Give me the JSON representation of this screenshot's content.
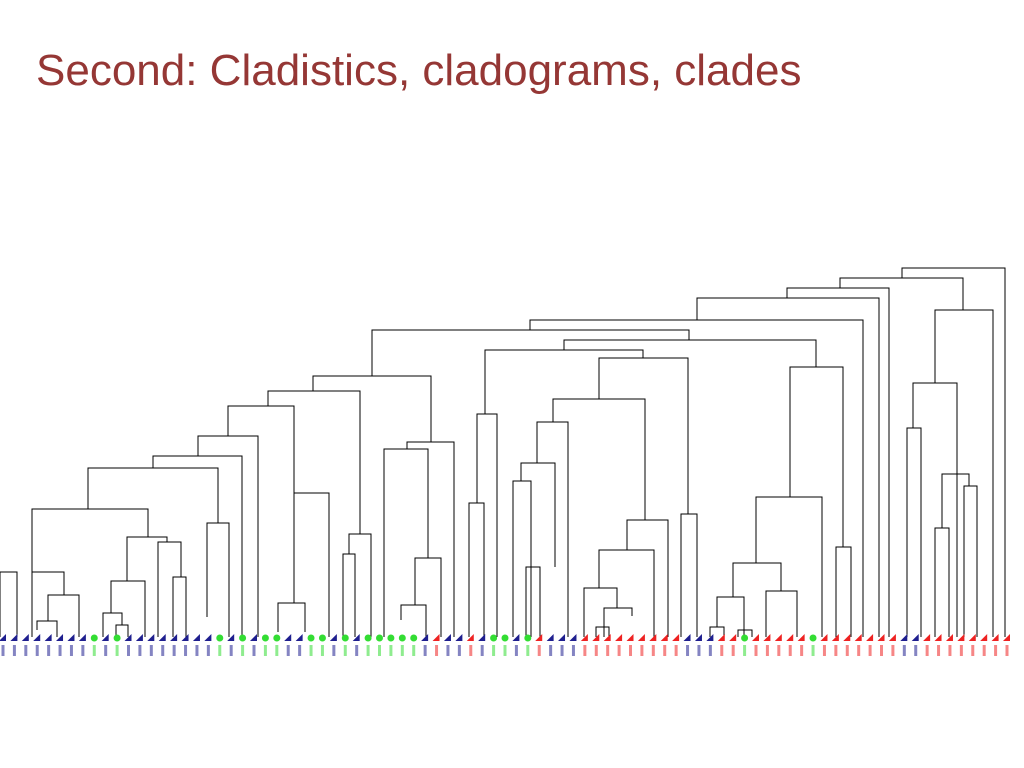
{
  "title": "Second: Cladistics, cladograms, clades"
}
